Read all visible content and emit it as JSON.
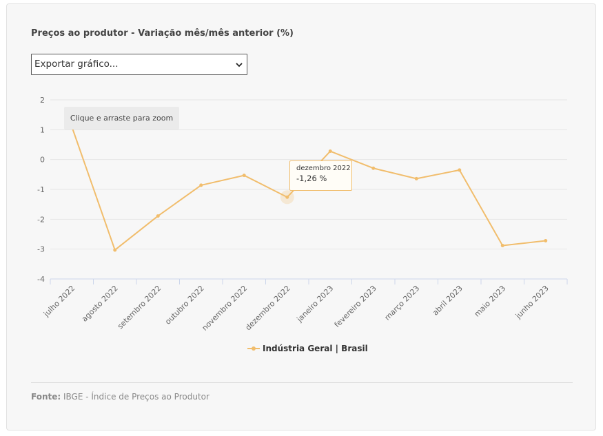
{
  "title": "Preços ao produtor - Variação mês/mês anterior (%)",
  "export": {
    "label": "Exportar gráfico..."
  },
  "zoom_hint": "Clique e arraste para zoom",
  "tooltip": {
    "category": "dezembro 2022",
    "value": "-1,26 %",
    "point_index": 5
  },
  "source": {
    "label": "Fonte:",
    "text": " IBGE - Índice de Preços ao Produtor"
  },
  "colors": {
    "series": "#f1bd6c",
    "grid": "#e6e6e6",
    "axis": "#ccd6eb",
    "text": "#666666"
  },
  "chart_data": {
    "type": "line",
    "title": "Preços ao produtor - Variação mês/mês anterior (%)",
    "xlabel": "",
    "ylabel": "",
    "ylim": [
      -4,
      2
    ],
    "yticks": [
      2,
      1,
      0,
      -1,
      -2,
      -3,
      -4
    ],
    "grid": true,
    "legend_position": "bottom-center",
    "categories": [
      "julho 2022",
      "agosto 2022",
      "setembro 2022",
      "outubro 2022",
      "novembro 2022",
      "dezembro 2022",
      "janeiro 2023",
      "fevereiro 2023",
      "março 2023",
      "abril 2023",
      "maio 2023",
      "junho 2023"
    ],
    "series": [
      {
        "name": "Indústria Geral | Brasil",
        "values": [
          1.1,
          -3.03,
          -1.89,
          -0.86,
          -0.53,
          -1.26,
          0.28,
          -0.29,
          -0.64,
          -0.35,
          -2.88,
          -2.72
        ]
      }
    ]
  }
}
